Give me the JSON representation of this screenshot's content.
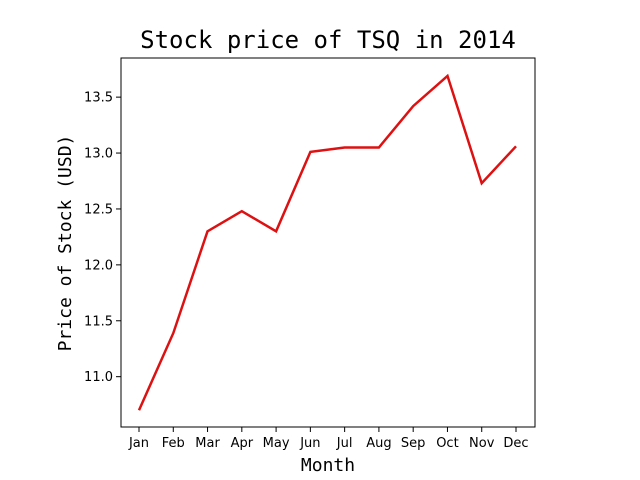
{
  "chart_data": {
    "type": "line",
    "title": "Stock price of TSQ in 2014",
    "xlabel": "Month",
    "ylabel": "Price of Stock (USD)",
    "categories": [
      "Jan",
      "Feb",
      "Mar",
      "Apr",
      "May",
      "Jun",
      "Jul",
      "Aug",
      "Sep",
      "Oct",
      "Nov",
      "Dec"
    ],
    "series": [
      {
        "values": [
          10.7,
          11.39,
          12.3,
          12.48,
          12.3,
          13.01,
          13.05,
          13.05,
          13.42,
          13.69,
          12.73,
          13.06
        ],
        "color": "#dd1111"
      }
    ],
    "ylim": [
      10.55,
      13.85
    ],
    "yticks": [
      11.0,
      11.5,
      12.0,
      12.5,
      13.0,
      13.5
    ],
    "ytick_labels": [
      "11.0",
      "11.5",
      "12.0",
      "12.5",
      "13.0",
      "13.5"
    ],
    "grid": false,
    "legend": "none"
  }
}
